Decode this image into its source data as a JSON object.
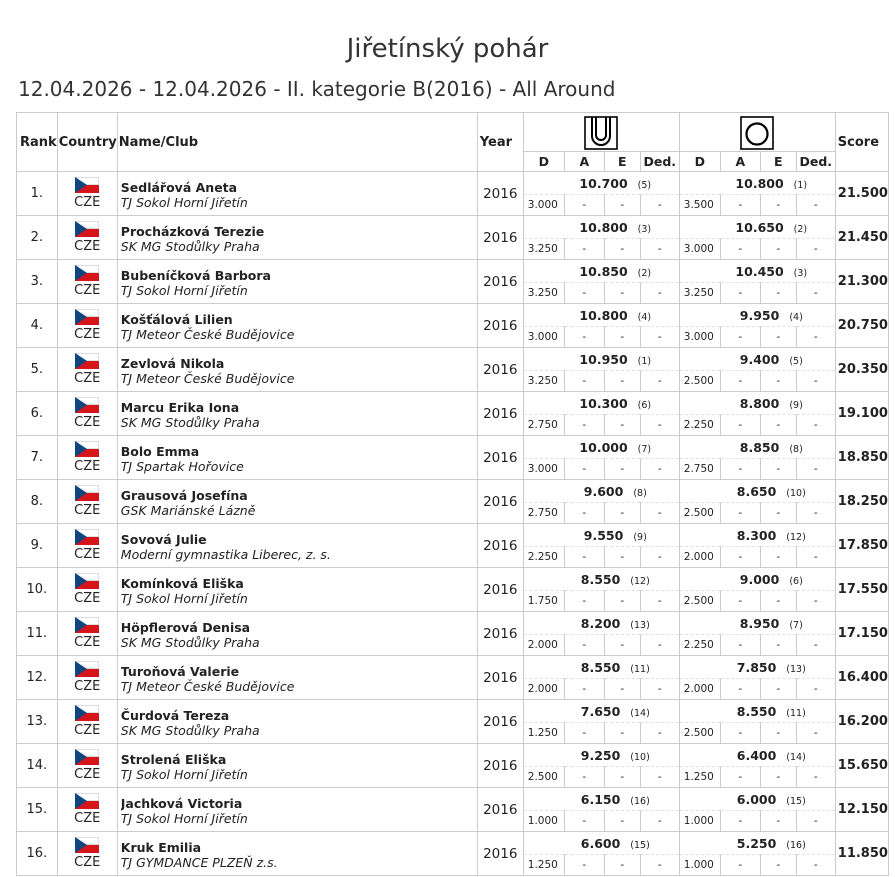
{
  "header": {
    "title": "Jiřetínský pohár",
    "subtitle": "12.04.2026 - 12.04.2026 - II. kategorie B(2016) - All Around"
  },
  "columns": {
    "rank": "Rank",
    "country": "Country",
    "name_club": "Name/Club",
    "year": "Year",
    "score": "Score",
    "d": "D",
    "a": "A",
    "e": "E",
    "ded": "Ded."
  },
  "apparatus": [
    {
      "icon": "hoop-in-frame-icon"
    },
    {
      "icon": "ball-in-frame-icon"
    }
  ],
  "flag_colors": {
    "white": "#ffffff",
    "red": "#d7141a",
    "blue": "#11457e"
  },
  "rows": [
    {
      "rank": "1.",
      "country": "CZE",
      "name": "Sedlářová Aneta",
      "club": "TJ Sokol Horní Jiřetín",
      "year": "2016",
      "app1": {
        "score": "10.700",
        "rank": "(5)",
        "d": "3.000"
      },
      "app2": {
        "score": "10.800",
        "rank": "(1)",
        "d": "3.500"
      },
      "total": "21.500"
    },
    {
      "rank": "2.",
      "country": "CZE",
      "name": "Procházková Terezie",
      "club": "SK MG Stodůlky Praha",
      "year": "2016",
      "app1": {
        "score": "10.800",
        "rank": "(3)",
        "d": "3.250"
      },
      "app2": {
        "score": "10.650",
        "rank": "(2)",
        "d": "3.000"
      },
      "total": "21.450"
    },
    {
      "rank": "3.",
      "country": "CZE",
      "name": "Bubeníčková Barbora",
      "club": "TJ Sokol Horní Jiřetín",
      "year": "2016",
      "app1": {
        "score": "10.850",
        "rank": "(2)",
        "d": "3.250"
      },
      "app2": {
        "score": "10.450",
        "rank": "(3)",
        "d": "3.250"
      },
      "total": "21.300"
    },
    {
      "rank": "4.",
      "country": "CZE",
      "name": "Košťálová Lilien",
      "club": "TJ Meteor České Budějovice",
      "year": "2016",
      "app1": {
        "score": "10.800",
        "rank": "(4)",
        "d": "3.000"
      },
      "app2": {
        "score": "9.950",
        "rank": "(4)",
        "d": "3.000"
      },
      "total": "20.750"
    },
    {
      "rank": "5.",
      "country": "CZE",
      "name": "Zevlová Nikola",
      "club": "TJ Meteor České Budějovice",
      "year": "2016",
      "app1": {
        "score": "10.950",
        "rank": "(1)",
        "d": "3.250"
      },
      "app2": {
        "score": "9.400",
        "rank": "(5)",
        "d": "2.500"
      },
      "total": "20.350"
    },
    {
      "rank": "6.",
      "country": "CZE",
      "name": "Marcu Erika Iona",
      "club": "SK MG Stodůlky Praha",
      "year": "2016",
      "app1": {
        "score": "10.300",
        "rank": "(6)",
        "d": "2.750"
      },
      "app2": {
        "score": "8.800",
        "rank": "(9)",
        "d": "2.250"
      },
      "total": "19.100"
    },
    {
      "rank": "7.",
      "country": "CZE",
      "name": "Bolo Emma",
      "club": "TJ Spartak Hořovice",
      "year": "2016",
      "app1": {
        "score": "10.000",
        "rank": "(7)",
        "d": "3.000"
      },
      "app2": {
        "score": "8.850",
        "rank": "(8)",
        "d": "2.750"
      },
      "total": "18.850"
    },
    {
      "rank": "8.",
      "country": "CZE",
      "name": "Grausová Josefína",
      "club": "GSK Mariánské Lázně",
      "year": "2016",
      "app1": {
        "score": "9.600",
        "rank": "(8)",
        "d": "2.750"
      },
      "app2": {
        "score": "8.650",
        "rank": "(10)",
        "d": "2.500"
      },
      "total": "18.250"
    },
    {
      "rank": "9.",
      "country": "CZE",
      "name": "Sovová Julie",
      "club": "Moderní gymnastika Liberec, z. s.",
      "year": "2016",
      "app1": {
        "score": "9.550",
        "rank": "(9)",
        "d": "2.250"
      },
      "app2": {
        "score": "8.300",
        "rank": "(12)",
        "d": "2.000"
      },
      "total": "17.850"
    },
    {
      "rank": "10.",
      "country": "CZE",
      "name": "Komínková Eliška",
      "club": "TJ Sokol Horní Jiřetín",
      "year": "2016",
      "app1": {
        "score": "8.550",
        "rank": "(12)",
        "d": "1.750"
      },
      "app2": {
        "score": "9.000",
        "rank": "(6)",
        "d": "2.500"
      },
      "total": "17.550"
    },
    {
      "rank": "11.",
      "country": "CZE",
      "name": "Höpflerová Denisa",
      "club": "SK MG Stodůlky Praha",
      "year": "2016",
      "app1": {
        "score": "8.200",
        "rank": "(13)",
        "d": "2.000"
      },
      "app2": {
        "score": "8.950",
        "rank": "(7)",
        "d": "2.250"
      },
      "total": "17.150"
    },
    {
      "rank": "12.",
      "country": "CZE",
      "name": "Turoňová Valerie",
      "club": "TJ Meteor České Budějovice",
      "year": "2016",
      "app1": {
        "score": "8.550",
        "rank": "(11)",
        "d": "2.000"
      },
      "app2": {
        "score": "7.850",
        "rank": "(13)",
        "d": "2.000"
      },
      "total": "16.400"
    },
    {
      "rank": "13.",
      "country": "CZE",
      "name": "Čurdová Tereza",
      "club": "SK MG Stodůlky Praha",
      "year": "2016",
      "app1": {
        "score": "7.650",
        "rank": "(14)",
        "d": "1.250"
      },
      "app2": {
        "score": "8.550",
        "rank": "(11)",
        "d": "2.500"
      },
      "total": "16.200"
    },
    {
      "rank": "14.",
      "country": "CZE",
      "name": "Strolená Eliška",
      "club": "TJ Sokol Horní Jiřetín",
      "year": "2016",
      "app1": {
        "score": "9.250",
        "rank": "(10)",
        "d": "2.500"
      },
      "app2": {
        "score": "6.400",
        "rank": "(14)",
        "d": "1.250"
      },
      "total": "15.650"
    },
    {
      "rank": "15.",
      "country": "CZE",
      "name": "Jachková Victoria",
      "club": "TJ Sokol Horní Jiřetín",
      "year": "2016",
      "app1": {
        "score": "6.150",
        "rank": "(16)",
        "d": "1.000"
      },
      "app2": {
        "score": "6.000",
        "rank": "(15)",
        "d": "1.000"
      },
      "total": "12.150"
    },
    {
      "rank": "16.",
      "country": "CZE",
      "name": "Kruk Emilia",
      "club": "TJ GYMDANCE PLZEŇ z.s.",
      "year": "2016",
      "app1": {
        "score": "6.600",
        "rank": "(15)",
        "d": "1.250"
      },
      "app2": {
        "score": "5.250",
        "rank": "(16)",
        "d": "1.000"
      },
      "total": "11.850"
    }
  ],
  "placeholder": "-"
}
